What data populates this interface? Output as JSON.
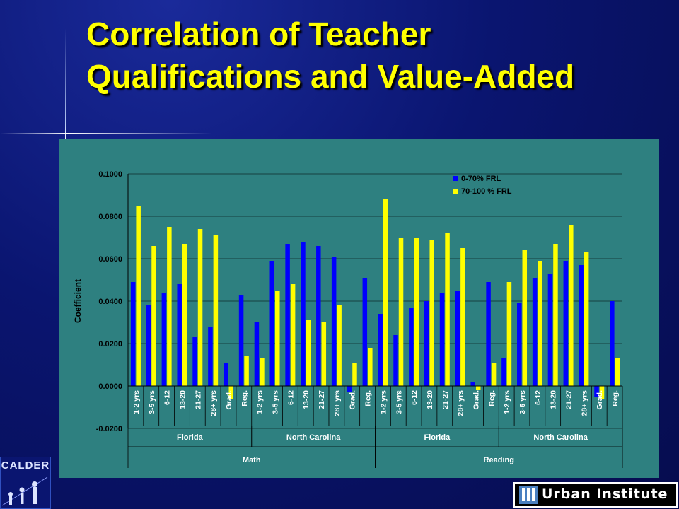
{
  "slide": {
    "title": "Correlation of Teacher Qualifications and Value-Added"
  },
  "logos": {
    "calder": "CALDER",
    "urban": "Urban Institute"
  },
  "colors": {
    "background": "#0a1570",
    "title": "#ffff00",
    "plot_area": "#2e8080",
    "series_low": "#0000ff",
    "series_high": "#ffff00"
  },
  "chart_data": {
    "type": "bar",
    "ylabel": "Coefficient",
    "ylim": [
      -0.02,
      0.1
    ],
    "yticks": [
      -0.02,
      0,
      0.02,
      0.04,
      0.06,
      0.08,
      0.1
    ],
    "ytick_labels": [
      "-0.0200",
      "0.0000",
      "0.0200",
      "0.0400",
      "0.0600",
      "0.0800",
      "0.1000"
    ],
    "grid": true,
    "legend_position": "top-right",
    "categories": [
      "1-2 yrs",
      "3-5 yrs",
      "6-12",
      "13-20",
      "21-27",
      "28+ yrs",
      "Grad.",
      "Reg.",
      "1-2 yrs",
      "3-5 yrs",
      "6-12",
      "13-20",
      "21-27",
      "28+ yrs",
      "Grad.",
      "Reg.",
      "1-2 yrs",
      "3-5 yrs",
      "6-12",
      "13-20",
      "21-27",
      "28+ yrs",
      "Grad.",
      "Reg.",
      "1-2 yrs",
      "3-5 yrs",
      "6-12",
      "13-20",
      "21-27",
      "28+ yrs",
      "Grad.",
      "Reg."
    ],
    "groups": [
      {
        "label": "Florida",
        "start": 0,
        "count": 8
      },
      {
        "label": "North Carolina",
        "start": 8,
        "count": 8
      },
      {
        "label": "Florida",
        "start": 16,
        "count": 8
      },
      {
        "label": "North Carolina",
        "start": 24,
        "count": 8
      }
    ],
    "supergroups": [
      {
        "label": "Math",
        "start": 0,
        "count": 16
      },
      {
        "label": "Reading",
        "start": 16,
        "count": 16
      }
    ],
    "series": [
      {
        "name": "0-70% FRL",
        "color": "#0000ff",
        "values": [
          0.049,
          0.038,
          0.044,
          0.048,
          0.023,
          0.028,
          0.011,
          0.043,
          0.03,
          0.059,
          0.067,
          0.068,
          0.066,
          0.061,
          -0.003,
          0.051,
          0.034,
          0.024,
          0.037,
          0.04,
          0.044,
          0.045,
          0.002,
          0.049,
          0.013,
          0.039,
          0.051,
          0.053,
          0.059,
          0.057,
          -0.005,
          0.04
        ]
      },
      {
        "name": "70-100 % FRL",
        "color": "#ffff00",
        "values": [
          0.085,
          0.066,
          0.075,
          0.067,
          0.074,
          0.071,
          -0.006,
          0.014,
          0.013,
          0.045,
          0.048,
          0.031,
          0.03,
          0.038,
          0.011,
          0.018,
          0.088,
          0.07,
          0.07,
          0.069,
          0.072,
          0.065,
          -0.002,
          0.011,
          0.049,
          0.064,
          0.059,
          0.067,
          0.076,
          0.063,
          -0.006,
          0.013
        ]
      }
    ]
  }
}
